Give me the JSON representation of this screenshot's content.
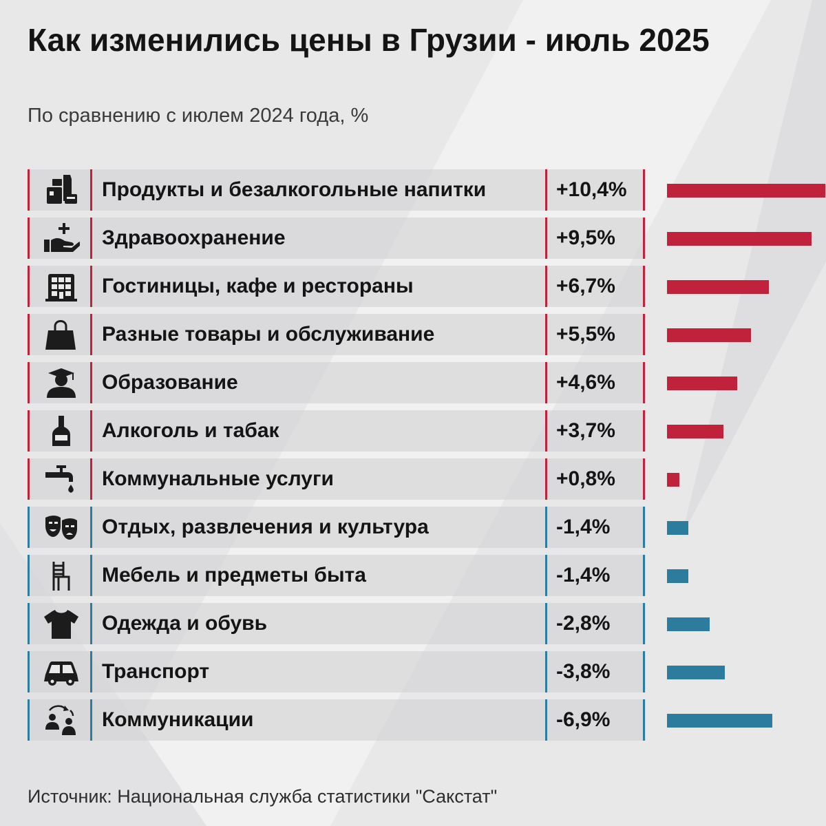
{
  "chart_data": {
    "type": "bar",
    "orientation": "horizontal",
    "title": "Как изменились цены в Грузии - июль 2025",
    "subtitle": "По сравнению с июлем 2024 года, %",
    "unit": "%",
    "categories": [
      "Продукты и безалкогольные напитки",
      "Здравоохранение",
      "Гостиницы, кафе и рестораны",
      "Разные товары и обслуживание",
      "Образование",
      "Алкоголь и табак",
      "Коммунальные услуги",
      "Отдых, развлечения и культура",
      "Мебель и предметы быта",
      "Одежда и обувь",
      "Транспорт",
      "Коммуникации"
    ],
    "values": [
      10.4,
      9.5,
      6.7,
      5.5,
      4.6,
      3.7,
      0.8,
      -1.4,
      -1.4,
      -2.8,
      -3.8,
      -6.9
    ],
    "value_labels": [
      "+10,4%",
      "+9,5%",
      "+6,7%",
      "+5,5%",
      "+4,6%",
      "+3,7%",
      "+0,8%",
      "-1,4%",
      "-1,4%",
      "-2,8%",
      "-3,8%",
      "-6,9%"
    ],
    "icons": [
      "grocery-icon",
      "healthcare-icon",
      "hotel-building-icon",
      "shopping-bag-icon",
      "graduate-icon",
      "bottle-icon",
      "faucet-icon",
      "theater-masks-icon",
      "chair-icon",
      "tshirt-icon",
      "car-icon",
      "people-exchange-icon"
    ],
    "colors": {
      "increase": "#c0223b",
      "decrease": "#2d7c9d"
    },
    "bar_scale_max_abs": 10.4
  },
  "source": "Источник: Национальная служба статистики \"Сакстат\""
}
